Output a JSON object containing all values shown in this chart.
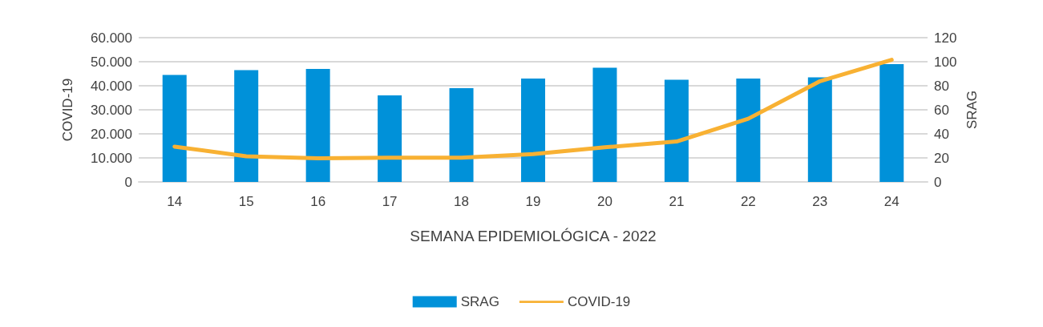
{
  "chart_data": {
    "type": "bar",
    "xlabel": "SEMANA EPIDEMIOLÓGICA - 2022",
    "ylabel": "COVID-19",
    "y2label": "SRAG",
    "categories": [
      "14",
      "15",
      "16",
      "17",
      "18",
      "19",
      "20",
      "21",
      "22",
      "23",
      "24"
    ],
    "series": [
      {
        "name": "SRAG",
        "axis": "y2",
        "color": "#0091d9",
        "values": [
          89,
          93,
          94,
          72,
          78,
          86,
          95,
          85,
          86,
          87,
          98
        ]
      },
      {
        "name": "COVID-19",
        "type": "line",
        "color": "#f8b133",
        "values": [
          14700,
          10700,
          9800,
          10100,
          10100,
          11600,
          14400,
          16800,
          26300,
          41900,
          50800
        ]
      }
    ],
    "ylim": [
      0,
      60000
    ],
    "yticks": [
      {
        "value": 0,
        "label": "0"
      },
      {
        "value": 10000,
        "label": "10.000"
      },
      {
        "value": 20000,
        "label": "20.000"
      },
      {
        "value": 30000,
        "label": "30.000"
      },
      {
        "value": 40000,
        "label": "40.000"
      },
      {
        "value": 50000,
        "label": "50.000"
      },
      {
        "value": 60000,
        "label": "60.000"
      }
    ],
    "y2lim": [
      0,
      120
    ],
    "y2ticks": [
      0,
      20,
      40,
      60,
      80,
      100,
      120
    ],
    "grid": "y",
    "legend": "bottom",
    "marker": "none"
  }
}
